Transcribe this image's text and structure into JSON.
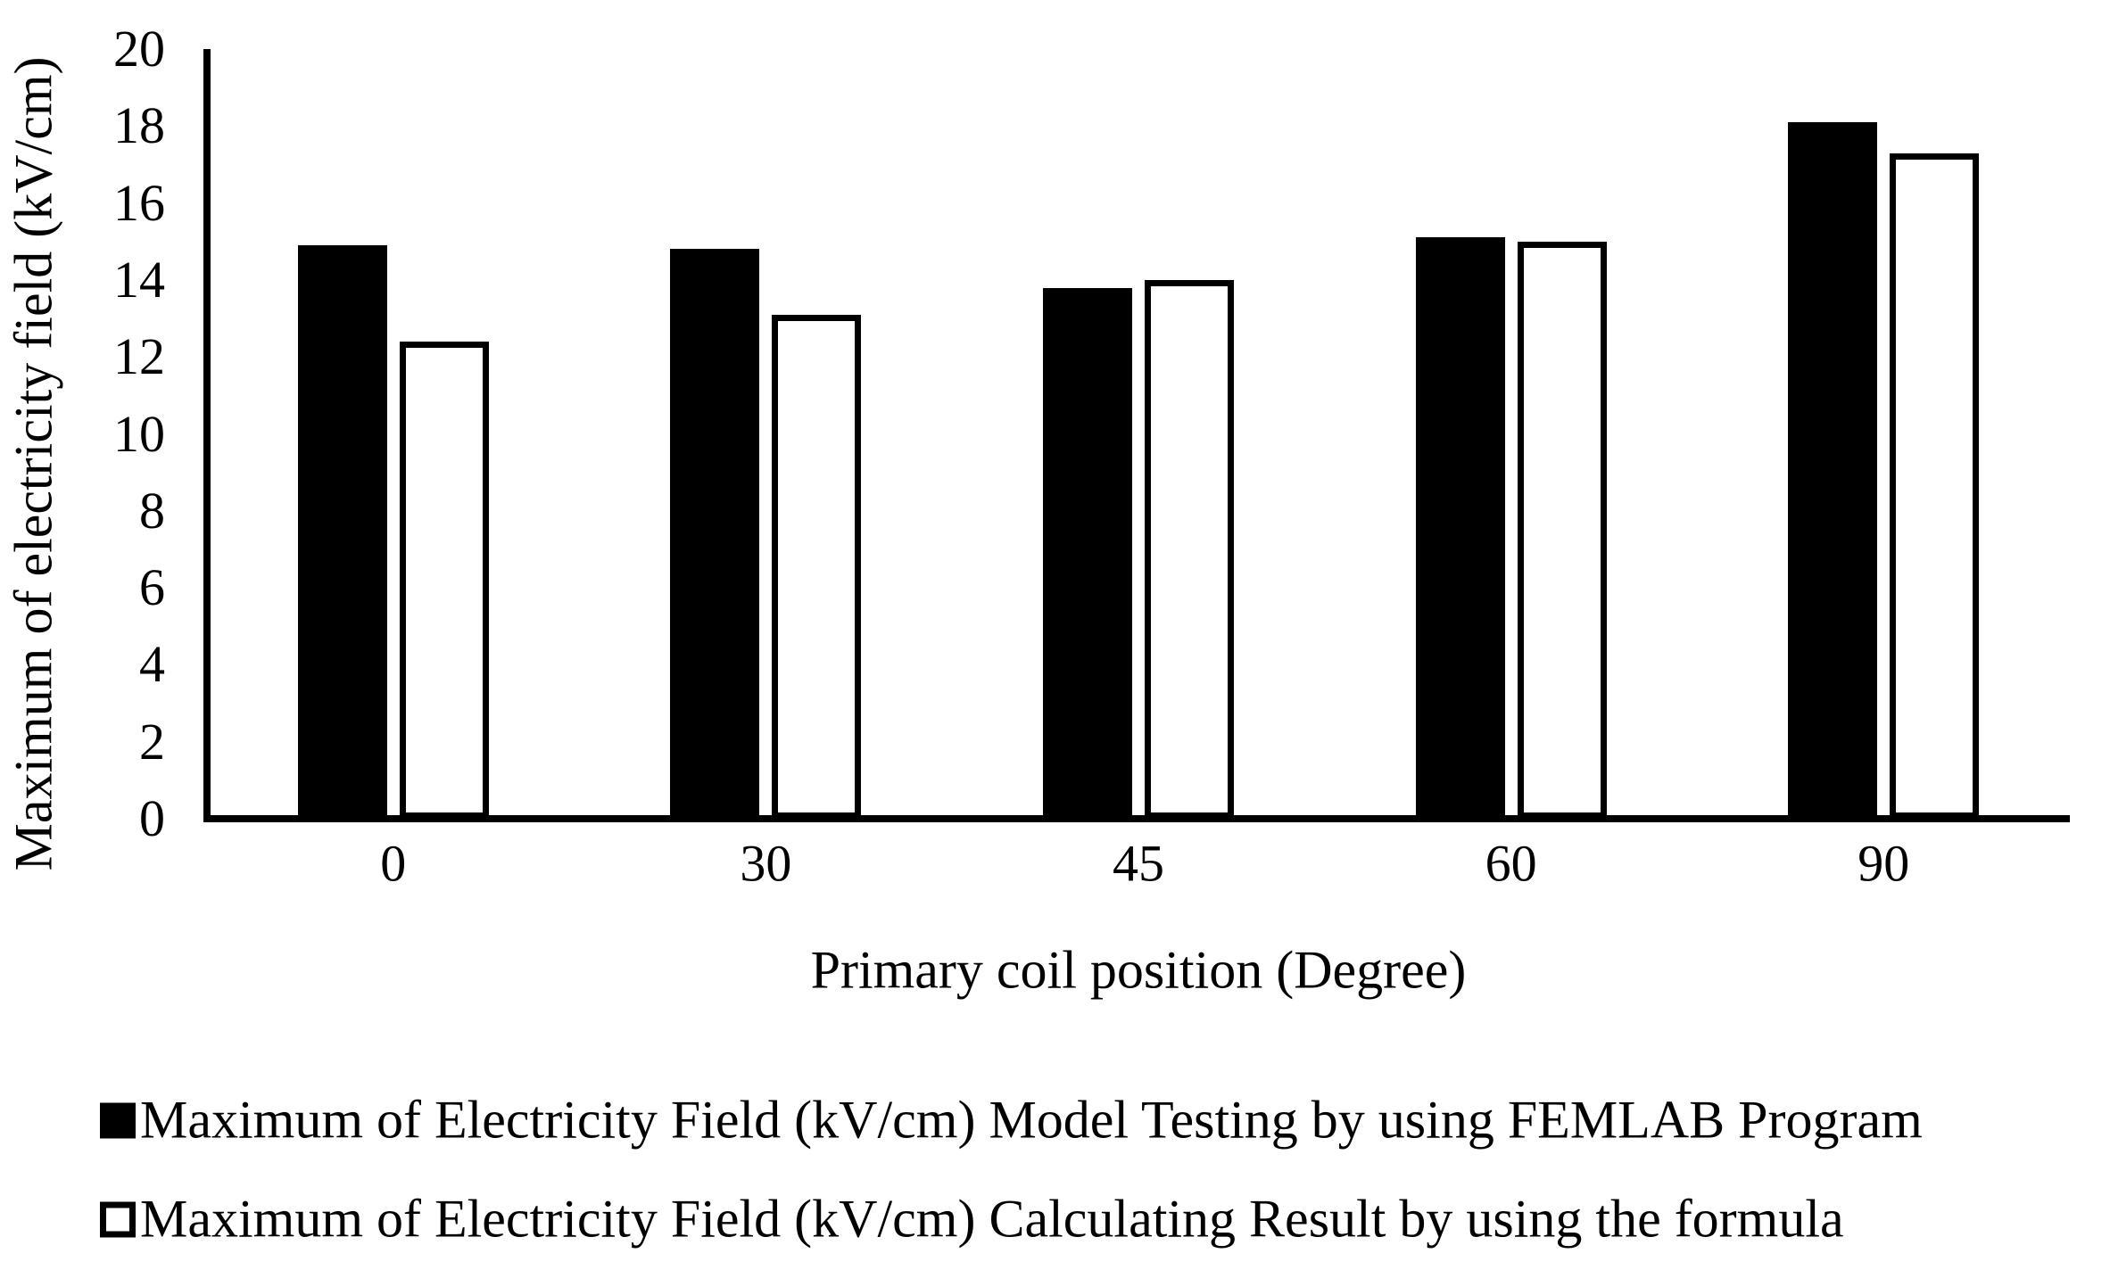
{
  "figure": {
    "background": "#ffffff",
    "ink": "#000000"
  },
  "chart_data": {
    "type": "bar",
    "title": "",
    "xlabel": "Primary coil position (Degree)",
    "ylabel": "Maximum of electricity field (kV/cm)",
    "categories": [
      "0",
      "30",
      "45",
      "60",
      "90"
    ],
    "series": [
      {
        "name": "Maximum of Electricity Field (kV/cm) Model Testing by using FEMLAB Program",
        "style": "filled",
        "fill": "#000000",
        "values": [
          14.9,
          14.8,
          13.8,
          15.1,
          18.1
        ]
      },
      {
        "name": "Maximum of Electricity Field (kV/cm) Calculating Result by using the formula",
        "style": "open",
        "fill": "#ffffff",
        "stroke": "#000000",
        "values": [
          12.4,
          13.1,
          14.0,
          15.0,
          17.3
        ]
      }
    ],
    "ylim": [
      0,
      20
    ],
    "ytick_step": 2,
    "yticks": [
      0,
      2,
      4,
      6,
      8,
      10,
      12,
      14,
      16,
      18,
      20
    ],
    "grid": false,
    "legend_position": "bottom-left"
  }
}
